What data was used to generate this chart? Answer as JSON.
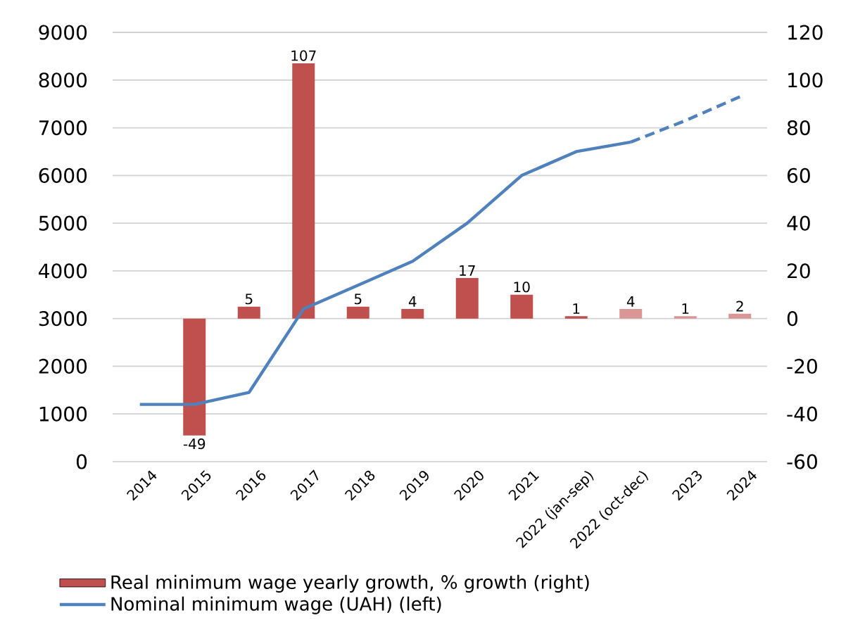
{
  "chart_data": {
    "type": "bar",
    "categories": [
      "2014",
      "2015",
      "2016",
      "2017",
      "2018",
      "2019",
      "2020",
      "2021",
      "2022 (jan-sep)",
      "2022 (oct-dec)",
      "2023",
      "2024"
    ],
    "series": [
      {
        "axis": "y2",
        "name": "Real minimum wage yearly growth, % growth (right)",
        "values": [
          null,
          -49,
          5,
          107,
          5,
          4,
          17,
          10,
          1,
          4,
          1,
          2
        ],
        "value_labels": [
          null,
          "-49",
          "5",
          "107",
          "5",
          "4",
          "17",
          "10",
          "1",
          "4",
          "1",
          "2"
        ],
        "colors": [
          "#c0504d",
          "#c0504d",
          "#c0504d",
          "#c0504d",
          "#c0504d",
          "#c0504d",
          "#c0504d",
          "#c0504d",
          "#c0504d",
          "#d99694",
          "#d99694",
          "#d99694"
        ]
      },
      {
        "type": "line",
        "axis": "y",
        "name": "Nominal minimum wage (UAH) (left)",
        "color": "#4f81bd",
        "line_style": "solid",
        "values": [
          1200,
          1200,
          1450,
          3200,
          3700,
          4200,
          5000,
          6000,
          6500,
          6700,
          null,
          null
        ]
      },
      {
        "type": "line",
        "axis": "y",
        "color": "#4f81bd",
        "line_style": "dashed",
        "values": [
          null,
          null,
          null,
          null,
          null,
          null,
          null,
          null,
          null,
          6700,
          7150,
          7650
        ]
      }
    ],
    "ylim": [
      0,
      9000
    ],
    "yticks": [
      0,
      1000,
      2000,
      3000,
      4000,
      5000,
      6000,
      7000,
      8000,
      9000
    ],
    "y2lim": [
      -60,
      120
    ],
    "y2ticks": [
      -60,
      -40,
      -20,
      0,
      20,
      40,
      60,
      80,
      100,
      120
    ],
    "grid": "y",
    "legend": "bottom"
  }
}
